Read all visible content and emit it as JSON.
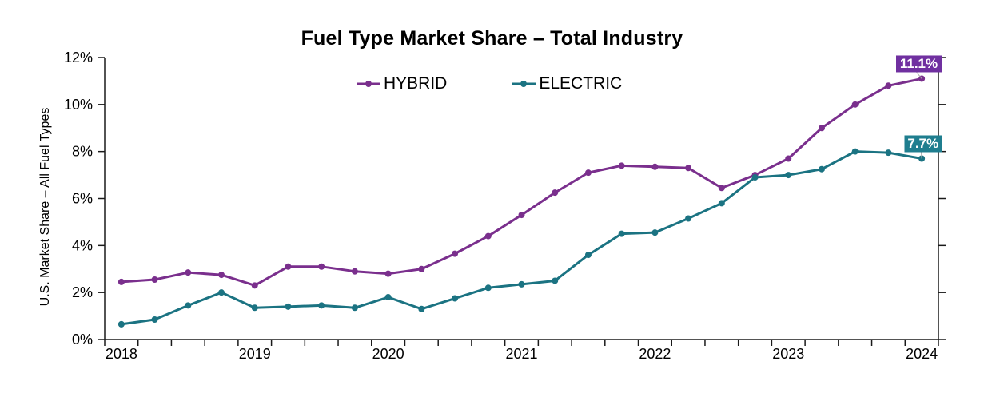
{
  "title": "Fuel Type Market Share – Total Industry",
  "y_axis_label": "U.S. Market Share – All Fuel Types",
  "legend": {
    "items": [
      {
        "label": "HYBRID"
      },
      {
        "label": "ELECTRIC"
      }
    ]
  },
  "colors": {
    "hybrid_line": "#7A2F8D",
    "hybrid_label_box": "#7030A0",
    "electric_line": "#1B7382",
    "electric_label_box": "#1F7E8F",
    "axis": "#1A1A1A",
    "tick_text": "#000000",
    "leader_line": "#AAAAAA",
    "end_label_text": "#FFFFFF"
  },
  "axes": {
    "y_tick_labels": [
      "0%",
      "2%",
      "4%",
      "6%",
      "8%",
      "10%",
      "12%"
    ],
    "x_tick_labels": [
      "2018",
      "2019",
      "2020",
      "2021",
      "2022",
      "2023",
      "2024"
    ],
    "grid": "off",
    "legend_position": "top-center"
  },
  "end_labels": [
    {
      "series": "HYBRID",
      "text": "11.1%"
    },
    {
      "series": "ELECTRIC",
      "text": "7.7%"
    }
  ],
  "chart_data": {
    "type": "line",
    "title": "Fuel Type Market Share – Total Industry",
    "xlabel": "",
    "ylabel": "U.S. Market Share – All Fuel Types",
    "ylim": [
      0,
      12
    ],
    "frequency": "quarterly",
    "x": [
      2018,
      2018.25,
      2018.5,
      2018.75,
      2019,
      2019.25,
      2019.5,
      2019.75,
      2020,
      2020.25,
      2020.5,
      2020.75,
      2021,
      2021.25,
      2021.5,
      2021.75,
      2022,
      2022.25,
      2022.5,
      2022.75,
      2023,
      2023.25,
      2023.5,
      2023.75,
      2024
    ],
    "series": [
      {
        "name": "HYBRID",
        "color": "#7A2F8D",
        "values": [
          2.45,
          2.55,
          2.85,
          2.75,
          2.3,
          3.1,
          3.1,
          2.9,
          2.8,
          3.0,
          3.65,
          4.4,
          5.3,
          6.25,
          7.1,
          7.4,
          7.35,
          7.3,
          6.45,
          7.0,
          7.7,
          9.0,
          10.0,
          10.8,
          11.1
        ]
      },
      {
        "name": "ELECTRIC",
        "color": "#1B7382",
        "values": [
          0.65,
          0.85,
          1.45,
          2.0,
          1.35,
          1.4,
          1.45,
          1.35,
          1.8,
          1.3,
          1.75,
          2.2,
          2.35,
          2.5,
          3.6,
          4.5,
          4.55,
          5.15,
          5.8,
          6.9,
          7.0,
          7.25,
          8.0,
          7.95,
          7.7
        ]
      }
    ],
    "final_value_annotations": [
      {
        "series": "HYBRID",
        "x": 2024,
        "value": 11.1,
        "label": "11.1%"
      },
      {
        "series": "ELECTRIC",
        "x": 2024,
        "value": 7.7,
        "label": "7.7%"
      }
    ]
  }
}
